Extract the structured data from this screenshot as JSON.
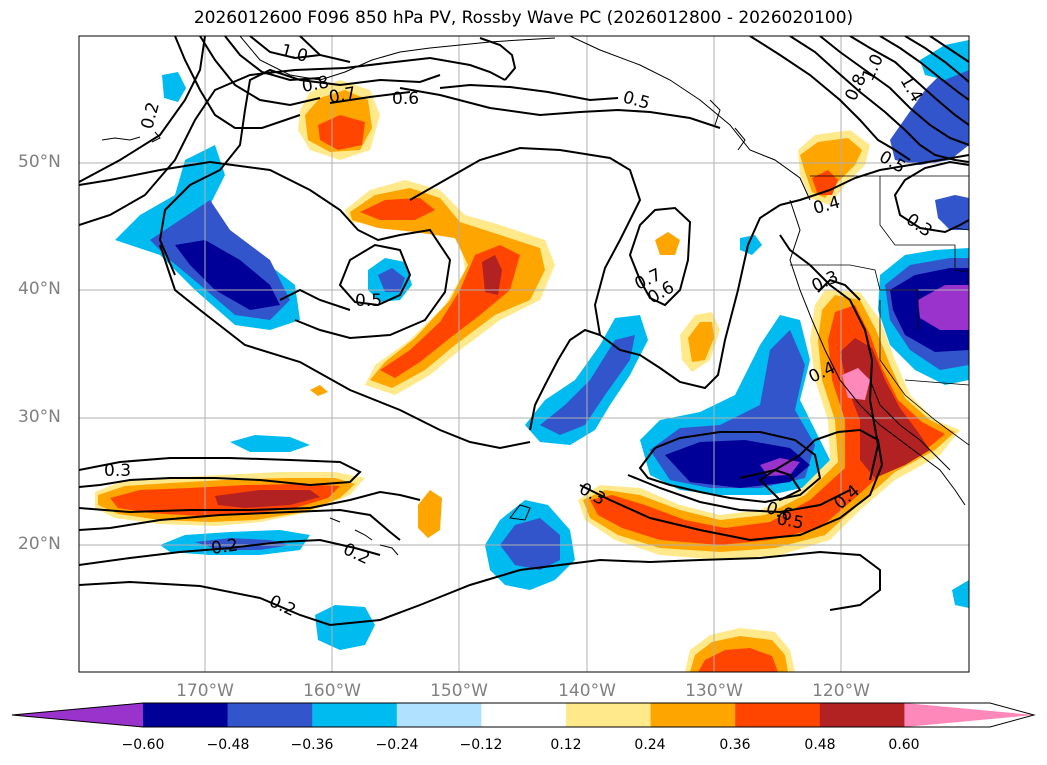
{
  "title": "2026012600 F096 850 hPa PV, Rossby Wave PC (2026012800 - 2026020100)",
  "lat_labels": [
    "50°N",
    "40°N",
    "30°N",
    "20°N"
  ],
  "lon_labels": [
    "170°W",
    "160°W",
    "150°W",
    "140°W",
    "130°W",
    "120°W"
  ],
  "colorbar": {
    "ticks": [
      "−0.60",
      "−0.48",
      "−0.36",
      "−0.24",
      "−0.12",
      "0.12",
      "0.24",
      "0.36",
      "0.48",
      "0.60"
    ],
    "colors": [
      "#9933cc",
      "#000099",
      "#3355cc",
      "#00bbf0",
      "#b0e2ff",
      "#ffffff",
      "#ffe98a",
      "#ffa500",
      "#ff4500",
      "#b22222",
      "#ff88bb"
    ]
  },
  "contour_labels": [
    "1.0",
    "0.8",
    "0.7",
    "0.6",
    "0.5",
    "1.4",
    "1.0",
    "0.8",
    "0.5",
    "0.2",
    "0.4",
    "0.3",
    "0.5",
    "0.7",
    "0.6",
    "0.3",
    "0.4",
    "0.3",
    "0.2",
    "0.2",
    "0.3",
    "0.6",
    "0.5",
    "0.4",
    "0.2"
  ]
}
